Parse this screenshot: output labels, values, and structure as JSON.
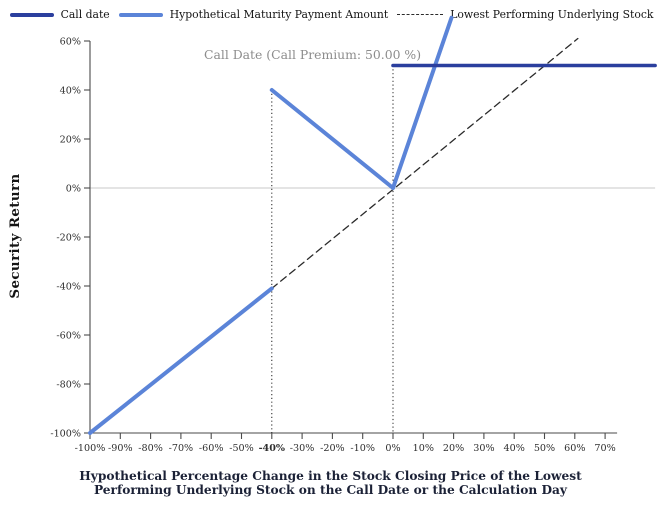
{
  "legend": {
    "items": [
      {
        "label": "Call date",
        "color": "#2b3f9e",
        "style": "solid"
      },
      {
        "label": "Hypothetical Maturity Payment Amount",
        "color": "#5b84d8",
        "style": "solid"
      },
      {
        "label": "Lowest Performing Underlying Stock",
        "color": "#2b2b2b",
        "style": "dashed"
      }
    ]
  },
  "annotation": {
    "text": "Call Date (Call Premium: 50.00 %)",
    "color": "#8c8c8c"
  },
  "chart_data": {
    "type": "line",
    "title": "",
    "xlabel": "Hypothetical Percentage Change in the Stock Closing Price of the Lowest Performing Underlying Stock on the Call Date or the Calculation Day",
    "ylabel": "Security Return",
    "x_ticks": [
      "-100%",
      "-90%",
      "-80%",
      "-70%",
      "-60%",
      "-50%",
      "-40%",
      "-30%",
      "-20%",
      "-10%",
      "0%",
      "10%",
      "20%",
      "30%",
      "40%",
      "50%",
      "60%",
      "70%"
    ],
    "x_tick_bold": "-40%",
    "y_ticks": [
      "-100%",
      "-80%",
      "-60%",
      "-40%",
      "-20%",
      "0%",
      "20%",
      "40%",
      "60%"
    ],
    "xlim": [
      -100,
      86.5
    ],
    "ylim": [
      -100,
      70
    ],
    "grid": "zero-line-only",
    "legend_position": "top-center",
    "series": [
      {
        "name": "Lowest Performing Underlying Stock",
        "style": "dashed",
        "color": "#2b2b2b",
        "width": 1.3,
        "segments": [
          [
            [
              -40,
              -41
            ],
            [
              61,
              61
            ]
          ]
        ]
      },
      {
        "name": "Hypothetical Maturity Payment Amount",
        "style": "solid",
        "color": "#5b84d8",
        "width": 4,
        "segments": [
          [
            [
              -100,
              -100
            ],
            [
              -40,
              -41
            ]
          ],
          [
            [
              -40,
              40
            ],
            [
              0,
              0
            ]
          ],
          [
            [
              0,
              0
            ],
            [
              19.3,
              69.5
            ]
          ]
        ]
      },
      {
        "name": "Call date",
        "style": "solid",
        "color": "#2b3f9e",
        "width": 3.6,
        "segments": [
          [
            [
              0,
              50
            ],
            [
              86.5,
              50
            ]
          ]
        ]
      }
    ],
    "dotted_verticals": [
      {
        "x": -40,
        "y_top": 40
      },
      {
        "x": 0,
        "y_top": 50
      }
    ],
    "zero_gridline": {
      "y": 0,
      "color": "#cacaca"
    },
    "colors": {
      "y_axis": "#5a5a5a",
      "x_axis": "#4a4a4a",
      "tick_label": "#2e2e2e",
      "dotted": "#1f1f1f"
    }
  }
}
